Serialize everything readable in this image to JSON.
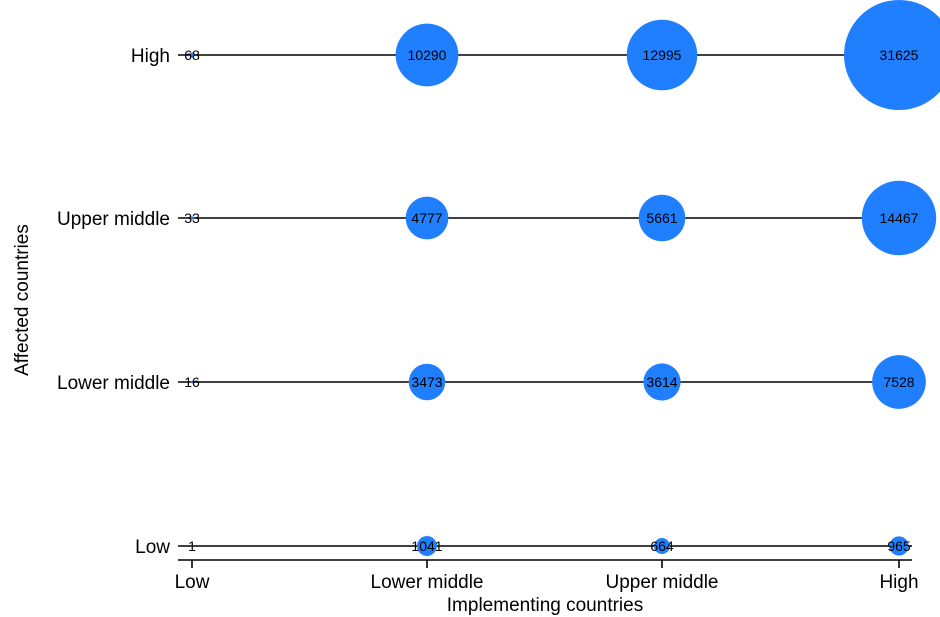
{
  "chart_data": {
    "type": "scatter",
    "subtype": "bubble",
    "xlabel": "Implementing countries",
    "ylabel": "Affected countries",
    "x_categories": [
      "Low",
      "Lower middle",
      "Upper middle",
      "High"
    ],
    "y_categories": [
      "Low",
      "Lower middle",
      "Upper middle",
      "High"
    ],
    "bubble_color": "#1f7fff",
    "grid": false,
    "legend": "none",
    "points": [
      {
        "x": "Low",
        "y": "High",
        "value": 68
      },
      {
        "x": "Lower middle",
        "y": "High",
        "value": 10290
      },
      {
        "x": "Upper middle",
        "y": "High",
        "value": 12995
      },
      {
        "x": "High",
        "y": "High",
        "value": 31625
      },
      {
        "x": "Low",
        "y": "Upper middle",
        "value": 33
      },
      {
        "x": "Lower middle",
        "y": "Upper middle",
        "value": 4777
      },
      {
        "x": "Upper middle",
        "y": "Upper middle",
        "value": 5661
      },
      {
        "x": "High",
        "y": "Upper middle",
        "value": 14467
      },
      {
        "x": "Low",
        "y": "Lower middle",
        "value": 16
      },
      {
        "x": "Lower middle",
        "y": "Lower middle",
        "value": 3473
      },
      {
        "x": "Upper middle",
        "y": "Lower middle",
        "value": 3614
      },
      {
        "x": "High",
        "y": "Lower middle",
        "value": 7528
      },
      {
        "x": "Low",
        "y": "Low",
        "value": 1
      },
      {
        "x": "Lower middle",
        "y": "Low",
        "value": 1041
      },
      {
        "x": "Upper middle",
        "y": "Low",
        "value": 664
      },
      {
        "x": "High",
        "y": "Low",
        "value": 965
      }
    ]
  }
}
